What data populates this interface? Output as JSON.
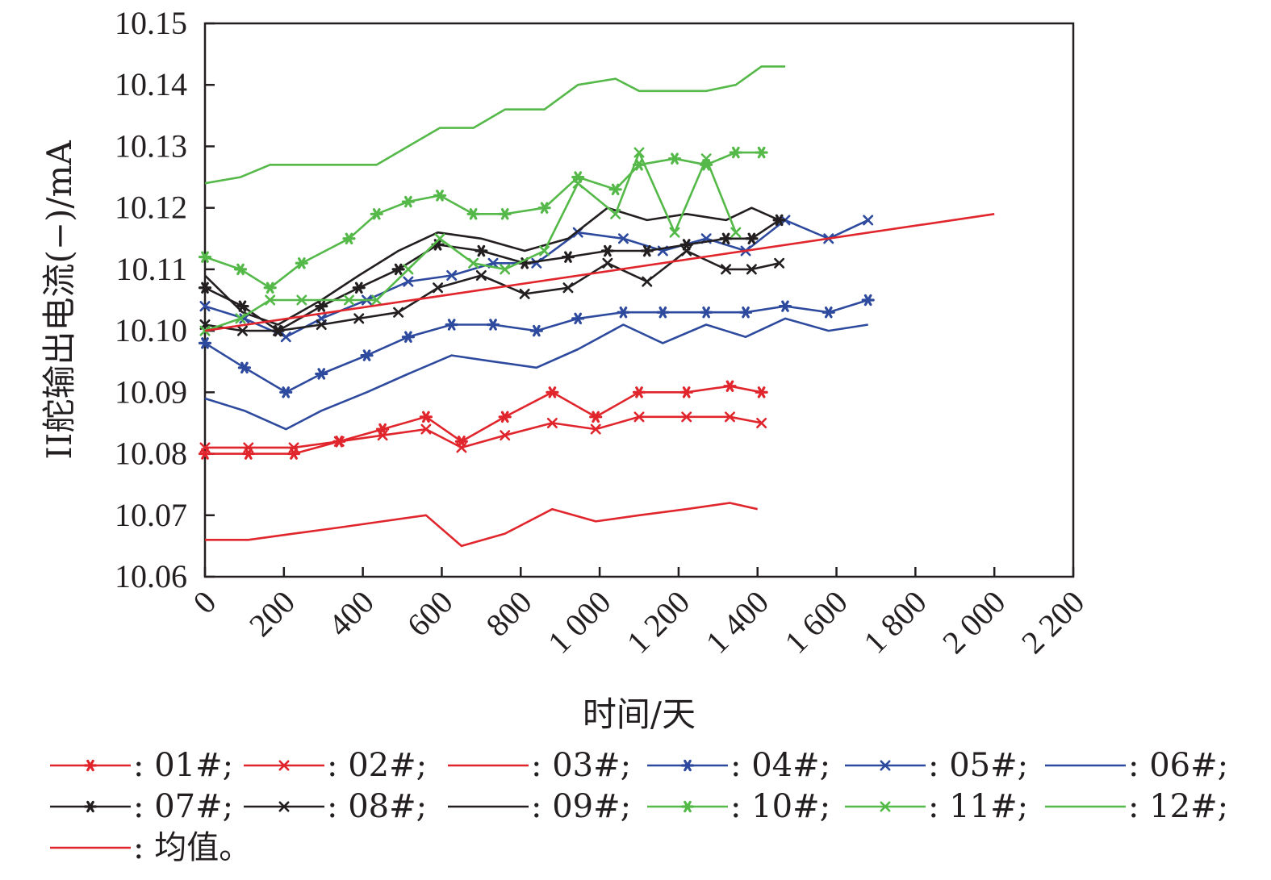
{
  "chart_data": {
    "type": "line",
    "xlabel": "时间/天",
    "ylabel": "II舵输出电流(−)/mA",
    "xlim": [
      0,
      2200
    ],
    "ylim": [
      10.06,
      10.15
    ],
    "xticks": [
      0,
      200,
      400,
      600,
      800,
      1000,
      1200,
      1400,
      1600,
      1800,
      2000,
      2200
    ],
    "xtick_labels": [
      "0",
      "200",
      "400",
      "600",
      "800",
      "1 000",
      "1 200",
      "1 400",
      "1 600",
      "1 800",
      "2 000",
      "2 200"
    ],
    "yticks": [
      10.06,
      10.07,
      10.08,
      10.09,
      10.1,
      10.11,
      10.12,
      10.13,
      10.14,
      10.15
    ],
    "ytick_labels": [
      "10.06",
      "10.07",
      "10.08",
      "10.09",
      "10.10",
      "10.11",
      "10.12",
      "10.13",
      "10.14",
      "10.15"
    ],
    "grid": false,
    "legend_position": "bottom",
    "series": [
      {
        "name": "01#",
        "legend": ": 01#;",
        "color": "#e0262c",
        "marker": "asterisk",
        "x": [
          0,
          110,
          225,
          340,
          450,
          560,
          650,
          760,
          880,
          990,
          1100,
          1220,
          1330,
          1410
        ],
        "y": [
          10.08,
          10.08,
          10.08,
          10.082,
          10.084,
          10.086,
          10.082,
          10.086,
          10.09,
          10.086,
          10.09,
          10.09,
          10.091,
          10.09
        ]
      },
      {
        "name": "02#",
        "legend": ": 02#;",
        "color": "#e0262c",
        "marker": "x",
        "x": [
          0,
          110,
          225,
          340,
          450,
          560,
          650,
          760,
          880,
          990,
          1100,
          1220,
          1330,
          1410
        ],
        "y": [
          10.081,
          10.081,
          10.081,
          10.082,
          10.083,
          10.084,
          10.081,
          10.083,
          10.085,
          10.084,
          10.086,
          10.086,
          10.086,
          10.085
        ]
      },
      {
        "name": "03#",
        "legend": ": 03#;",
        "color": "#e0262c",
        "marker": "none",
        "x": [
          0,
          110,
          225,
          340,
          450,
          560,
          650,
          760,
          880,
          990,
          1100,
          1220,
          1330,
          1400
        ],
        "y": [
          10.066,
          10.066,
          10.067,
          10.068,
          10.069,
          10.07,
          10.065,
          10.067,
          10.071,
          10.069,
          10.07,
          10.071,
          10.072,
          10.071
        ]
      },
      {
        "name": "04#",
        "legend": ": 04#;",
        "color": "#2e4a9e",
        "marker": "asterisk",
        "x": [
          0,
          100,
          205,
          295,
          410,
          515,
          625,
          730,
          840,
          945,
          1060,
          1160,
          1270,
          1370,
          1470,
          1580,
          1680
        ],
        "y": [
          10.098,
          10.094,
          10.09,
          10.093,
          10.096,
          10.099,
          10.101,
          10.101,
          10.1,
          10.102,
          10.103,
          10.103,
          10.103,
          10.103,
          10.104,
          10.103,
          10.105
        ]
      },
      {
        "name": "05#",
        "legend": ": 05#;",
        "color": "#2e4a9e",
        "marker": "x",
        "x": [
          0,
          100,
          205,
          295,
          410,
          515,
          625,
          730,
          840,
          945,
          1060,
          1160,
          1270,
          1370,
          1470,
          1580,
          1680
        ],
        "y": [
          10.104,
          10.102,
          10.099,
          10.102,
          10.105,
          10.108,
          10.109,
          10.111,
          10.111,
          10.116,
          10.115,
          10.113,
          10.115,
          10.113,
          10.118,
          10.115,
          10.118
        ]
      },
      {
        "name": "06#",
        "legend": ": 06#;",
        "color": "#2e4a9e",
        "marker": "none",
        "x": [
          0,
          100,
          205,
          295,
          410,
          515,
          625,
          730,
          840,
          945,
          1060,
          1160,
          1270,
          1370,
          1470,
          1580,
          1680
        ],
        "y": [
          10.089,
          10.087,
          10.084,
          10.087,
          10.09,
          10.093,
          10.096,
          10.095,
          10.094,
          10.097,
          10.101,
          10.098,
          10.101,
          10.099,
          10.102,
          10.1,
          10.101
        ]
      },
      {
        "name": "07#",
        "legend": ": 07#;",
        "color": "#231f20",
        "marker": "asterisk",
        "x": [
          0,
          95,
          185,
          295,
          390,
          490,
          590,
          700,
          810,
          920,
          1020,
          1120,
          1220,
          1320,
          1385,
          1455
        ],
        "y": [
          10.107,
          10.104,
          10.1,
          10.104,
          10.107,
          10.11,
          10.114,
          10.113,
          10.111,
          10.112,
          10.113,
          10.113,
          10.114,
          10.115,
          10.115,
          10.118
        ]
      },
      {
        "name": "08#",
        "legend": ": 08#;",
        "color": "#231f20",
        "marker": "x",
        "x": [
          0,
          95,
          185,
          295,
          390,
          490,
          590,
          700,
          810,
          920,
          1020,
          1120,
          1220,
          1320,
          1385,
          1455
        ],
        "y": [
          10.101,
          10.1,
          10.1,
          10.101,
          10.102,
          10.103,
          10.107,
          10.109,
          10.106,
          10.107,
          10.111,
          10.108,
          10.113,
          10.11,
          10.11,
          10.111
        ]
      },
      {
        "name": "09#",
        "legend": ": 09#;",
        "color": "#231f20",
        "marker": "none",
        "x": [
          0,
          95,
          185,
          295,
          390,
          490,
          590,
          700,
          810,
          920,
          1020,
          1120,
          1220,
          1320,
          1385,
          1455
        ],
        "y": [
          10.109,
          10.103,
          10.101,
          10.105,
          10.109,
          10.113,
          10.116,
          10.115,
          10.113,
          10.115,
          10.12,
          10.118,
          10.119,
          10.118,
          10.12,
          10.118
        ]
      },
      {
        "name": "10#",
        "legend": ": 10#;",
        "color": "#54b948",
        "marker": "asterisk",
        "x": [
          0,
          90,
          165,
          245,
          365,
          435,
          515,
          595,
          680,
          760,
          860,
          945,
          1040,
          1100,
          1190,
          1270,
          1345,
          1410
        ],
        "y": [
          10.112,
          10.11,
          10.107,
          10.111,
          10.115,
          10.119,
          10.121,
          10.122,
          10.119,
          10.119,
          10.12,
          10.125,
          10.123,
          10.127,
          10.128,
          10.127,
          10.129,
          10.129
        ]
      },
      {
        "name": "11#",
        "legend": ": 11#;",
        "color": "#54b948",
        "marker": "x",
        "x": [
          0,
          90,
          165,
          245,
          365,
          435,
          515,
          595,
          680,
          760,
          860,
          945,
          1040,
          1100,
          1190,
          1270,
          1345
        ],
        "y": [
          10.1,
          10.102,
          10.105,
          10.105,
          10.105,
          10.105,
          10.11,
          10.115,
          10.111,
          10.11,
          10.113,
          10.124,
          10.119,
          10.129,
          10.116,
          10.128,
          10.116
        ]
      },
      {
        "name": "12#",
        "legend": ": 12#;",
        "color": "#54b948",
        "marker": "none",
        "x": [
          0,
          90,
          165,
          245,
          365,
          435,
          515,
          595,
          680,
          760,
          860,
          945,
          1040,
          1100,
          1190,
          1270,
          1345,
          1410,
          1470
        ],
        "y": [
          10.124,
          10.125,
          10.127,
          10.127,
          10.127,
          10.127,
          10.13,
          10.133,
          10.133,
          10.136,
          10.136,
          10.14,
          10.141,
          10.139,
          10.139,
          10.139,
          10.14,
          10.143,
          10.143
        ]
      },
      {
        "name": "均值",
        "legend": ": 均值。",
        "color": "#e0262c",
        "marker": "none",
        "x": [
          0,
          2000
        ],
        "y": [
          10.1,
          10.119
        ]
      }
    ]
  }
}
